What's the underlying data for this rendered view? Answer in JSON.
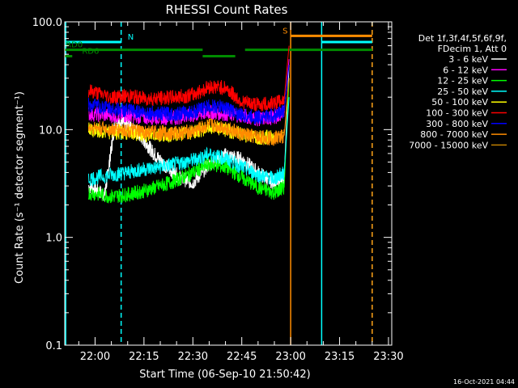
{
  "chart_data": {
    "type": "line",
    "title": "RHESSI Count Rates",
    "xlabel": "Start Time (06-Sep-10 21:50:42)",
    "ylabel": "Count Rate (s⁻¹ detector segment⁻¹)",
    "y_scale": "log",
    "ylim": [
      0.1,
      100.0
    ],
    "xlim": [
      "21:50:42",
      "23:31:00"
    ],
    "x_ticks": [
      "22:00",
      "22:15",
      "22:30",
      "22:45",
      "23:00",
      "23:15",
      "23:30"
    ],
    "y_ticks": [
      "0.1",
      "1.0",
      "10.0",
      "100.0"
    ],
    "background": "#000000",
    "axis_color": "#ffffff",
    "grid": false,
    "legend_placement": "right, outside plot",
    "legend_header": [
      "Det 1f,3f,4f,5f,6f,9f,",
      "FDecim 1, Att 0"
    ],
    "footer_timestamp": "16-Oct-2021 04:44",
    "series": [
      {
        "name": "3 - 6 keV",
        "color": "#ffffff",
        "x": [
          "21:58:00",
          "22:03:00",
          "22:06:00",
          "22:09:00",
          "22:12:00",
          "22:15:00",
          "22:18:00",
          "22:22:00",
          "22:26:00",
          "22:30:00",
          "22:35:00",
          "22:40:00",
          "22:45:00",
          "22:50:00",
          "22:55:00",
          "22:58:00",
          "22:59:30"
        ],
        "y": [
          3.0,
          2.5,
          11.0,
          11.5,
          10.0,
          8.0,
          6.0,
          4.5,
          3.6,
          3.2,
          4.8,
          5.8,
          5.3,
          4.0,
          3.2,
          3.6,
          40.0
        ]
      },
      {
        "name": "6 - 12 keV",
        "color": "#ff00ff",
        "x": [
          "21:58:00",
          "22:05:00",
          "22:10:00",
          "22:15:00",
          "22:20:00",
          "22:25:00",
          "22:30:00",
          "22:35:00",
          "22:40:00",
          "22:45:00",
          "22:50:00",
          "22:55:00",
          "22:58:00",
          "22:59:30"
        ],
        "y": [
          14.0,
          13.5,
          13.5,
          13.0,
          13.0,
          13.0,
          13.5,
          14.5,
          14.0,
          13.5,
          12.5,
          13.0,
          14.5,
          45.0
        ]
      },
      {
        "name": "12 - 25 keV",
        "color": "#00ff00",
        "x": [
          "21:58:00",
          "22:05:00",
          "22:10:00",
          "22:15:00",
          "22:20:00",
          "22:25:00",
          "22:30:00",
          "22:35:00",
          "22:40:00",
          "22:45:00",
          "22:50:00",
          "22:55:00",
          "22:58:00",
          "22:59:30"
        ],
        "y": [
          2.6,
          2.4,
          2.5,
          2.7,
          3.0,
          3.4,
          4.0,
          4.8,
          4.5,
          3.6,
          2.9,
          2.6,
          2.9,
          30.0
        ]
      },
      {
        "name": "25 - 50 keV",
        "color": "#00ffff",
        "x": [
          "21:58:00",
          "22:05:00",
          "22:10:00",
          "22:15:00",
          "22:20:00",
          "22:25:00",
          "22:30:00",
          "22:35:00",
          "22:40:00",
          "22:45:00",
          "22:50:00",
          "22:55:00",
          "22:58:00",
          "22:59:30"
        ],
        "y": [
          3.5,
          3.8,
          4.0,
          4.3,
          4.5,
          4.8,
          5.2,
          5.9,
          5.4,
          4.5,
          3.8,
          3.5,
          4.0,
          20.0
        ]
      },
      {
        "name": "50 - 100 keV",
        "color": "#ffff00",
        "x": [
          "21:58:00",
          "22:05:00",
          "22:10:00",
          "22:15:00",
          "22:20:00",
          "22:25:00",
          "22:30:00",
          "22:35:00",
          "22:40:00",
          "22:45:00",
          "22:50:00",
          "22:55:00",
          "22:58:00"
        ],
        "y": [
          10.0,
          9.5,
          9.3,
          9.0,
          9.0,
          9.0,
          9.5,
          10.5,
          10.0,
          9.0,
          8.5,
          8.5,
          9.5
        ]
      },
      {
        "name": "100 - 300 keV",
        "color": "#ff0000",
        "x": [
          "21:58:00",
          "22:05:00",
          "22:10:00",
          "22:15:00",
          "22:20:00",
          "22:25:00",
          "22:30:00",
          "22:35:00",
          "22:40:00",
          "22:45:00",
          "22:50:00",
          "22:55:00",
          "22:58:00",
          "22:59:30"
        ],
        "y": [
          23.0,
          20.0,
          20.5,
          19.5,
          19.5,
          20.0,
          21.0,
          25.0,
          24.5,
          18.0,
          17.0,
          17.5,
          19.0,
          60.0
        ]
      },
      {
        "name": "300 - 800 keV",
        "color": "#0000ff",
        "x": [
          "21:58:00",
          "22:05:00",
          "22:10:00",
          "22:15:00",
          "22:20:00",
          "22:25:00",
          "22:30:00",
          "22:35:00",
          "22:40:00",
          "22:45:00",
          "22:50:00",
          "22:55:00",
          "22:58:00",
          "22:59:30"
        ],
        "y": [
          17.0,
          15.5,
          15.0,
          14.5,
          14.0,
          14.0,
          14.5,
          16.5,
          16.0,
          13.5,
          13.0,
          13.5,
          15.0,
          40.0
        ]
      },
      {
        "name": "800 - 7000 keV",
        "color": "#ff8c00",
        "x": [
          "21:58:00",
          "22:05:00",
          "22:10:00",
          "22:15:00",
          "22:20:00",
          "22:25:00",
          "22:30:00",
          "22:35:00",
          "22:40:00",
          "22:45:00",
          "22:50:00",
          "22:55:00",
          "22:58:00",
          "22:59:30"
        ],
        "y": [
          10.5,
          10.0,
          9.8,
          9.5,
          9.3,
          9.3,
          9.6,
          11.0,
          10.5,
          9.0,
          8.5,
          8.3,
          8.8,
          30.0
        ]
      },
      {
        "name": "7000 - 15000 keV",
        "color": "#c08000",
        "x": [],
        "y": []
      }
    ],
    "flag_bars": [
      {
        "label": "N",
        "color": "#00ffff",
        "value": 65.0,
        "start": "21:50:42",
        "end": "22:08:00",
        "label_at": "22:10:00"
      },
      {
        "label": "",
        "color": "#00ffff",
        "value": 65.0,
        "start": "23:09:30",
        "end": "23:25:00"
      },
      {
        "label": "S",
        "color": "#ff8c00",
        "value": 74.0,
        "start": "23:00:00",
        "end": "23:25:00",
        "label_at": "22:57:30"
      },
      {
        "label": "RD0",
        "color": "#008c00",
        "value": 55.0,
        "start": "21:50:42",
        "end": "22:33:00",
        "label_at": "21:51:00"
      },
      {
        "label": "",
        "color": "#008c00",
        "value": 55.0,
        "start": "22:46:00",
        "end": "23:25:00"
      },
      {
        "label": "RD6",
        "color": "#008c00",
        "value": 48.0,
        "start": "21:50:42",
        "end": "21:53:00",
        "label_at": "21:56:00"
      },
      {
        "label": "",
        "color": "#008c00",
        "value": 48.0,
        "start": "22:33:00",
        "end": "22:43:00"
      }
    ],
    "vertical_markers": [
      {
        "time": "21:51:00",
        "color": "#00ffff",
        "style": "solid"
      },
      {
        "time": "22:08:00",
        "color": "#00ffff",
        "style": "dashed"
      },
      {
        "time": "23:09:30",
        "color": "#00ffff",
        "style": "solid"
      },
      {
        "time": "23:25:00",
        "color": "#00ffff",
        "style": "dashed"
      },
      {
        "time": "23:00:00",
        "color": "#ff8c00",
        "style": "solid"
      },
      {
        "time": "23:25:00",
        "color": "#ff8c00",
        "style": "dashed"
      }
    ]
  }
}
